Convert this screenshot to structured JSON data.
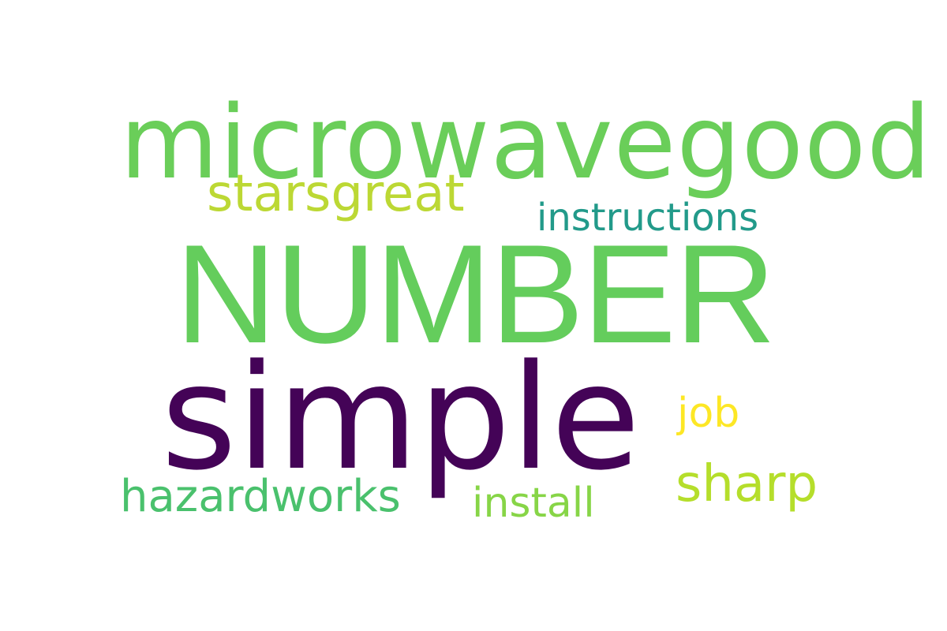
{
  "wordcloud": {
    "words": [
      {
        "text": "microwavegood",
        "color": "#6ace59"
      },
      {
        "text": "starsgreat",
        "color": "#bcd834"
      },
      {
        "text": "instructions",
        "color": "#229a8a"
      },
      {
        "text": "NUMBER",
        "color": "#64cd5c"
      },
      {
        "text": "simple",
        "color": "#440357"
      },
      {
        "text": "job",
        "color": "#fde725"
      },
      {
        "text": "sharp",
        "color": "#b5de2b"
      },
      {
        "text": "hazardworks",
        "color": "#4ac16d"
      },
      {
        "text": "install",
        "color": "#87d547"
      }
    ]
  }
}
